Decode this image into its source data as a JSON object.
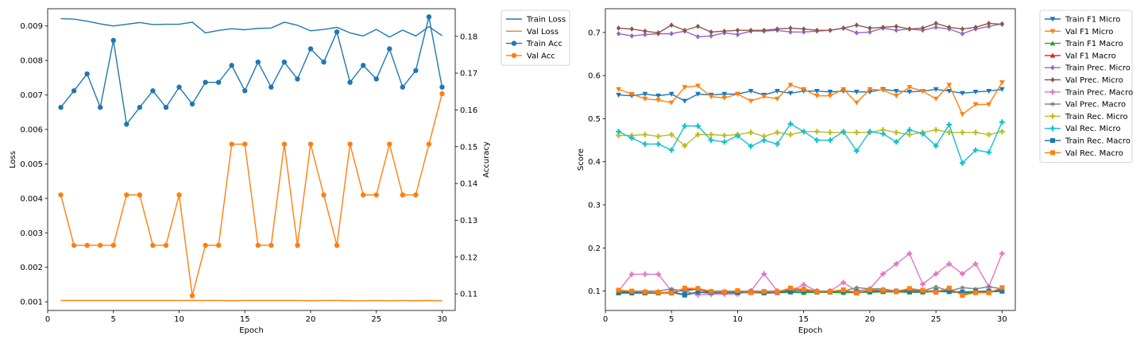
{
  "chart_data": [
    {
      "type": "line",
      "xlabel": "Epoch",
      "ylabel_left": "Loss",
      "ylabel_right": "Accuracy",
      "xlim": [
        0,
        31
      ],
      "xticks": [
        0,
        5,
        10,
        15,
        20,
        25,
        30
      ],
      "ylim_left": [
        0.00075,
        0.0095
      ],
      "yticks_left": [
        0.001,
        0.002,
        0.003,
        0.004,
        0.005,
        0.006,
        0.007,
        0.008,
        0.009
      ],
      "ylim_right": [
        0.1055,
        0.1875
      ],
      "yticks_right": [
        0.11,
        0.12,
        0.13,
        0.14,
        0.15,
        0.16,
        0.17,
        0.18
      ],
      "x": [
        1,
        2,
        3,
        4,
        5,
        6,
        7,
        8,
        9,
        10,
        11,
        12,
        13,
        14,
        15,
        16,
        17,
        18,
        19,
        20,
        21,
        22,
        23,
        24,
        25,
        26,
        27,
        28,
        29,
        30
      ],
      "series": [
        {
          "name": "Train Loss",
          "axis": "left",
          "color": "#1f77b4",
          "marker": "none",
          "values": [
            0.00921,
            0.0092,
            0.00914,
            0.00906,
            0.009,
            0.00905,
            0.0091,
            0.00904,
            0.00905,
            0.00905,
            0.00911,
            0.0088,
            0.00887,
            0.00892,
            0.00889,
            0.00893,
            0.00894,
            0.00911,
            0.00902,
            0.00886,
            0.0089,
            0.00896,
            0.0088,
            0.00871,
            0.0089,
            0.00868,
            0.00888,
            0.00871,
            0.00898,
            0.00872
          ]
        },
        {
          "name": "Val Loss",
          "axis": "left",
          "color": "#ff7f0e",
          "marker": "none",
          "values": [
            0.00104,
            0.00104,
            0.00104,
            0.00104,
            0.00104,
            0.00104,
            0.00104,
            0.00104,
            0.00104,
            0.00104,
            0.00104,
            0.00104,
            0.00104,
            0.00103,
            0.00104,
            0.00104,
            0.00104,
            0.00104,
            0.00104,
            0.00103,
            0.00104,
            0.00104,
            0.00103,
            0.00103,
            0.00104,
            0.00103,
            0.00104,
            0.00103,
            0.00104,
            0.00103
          ]
        },
        {
          "name": "Train Acc",
          "axis": "right",
          "color": "#1f77b4",
          "marker": "circle",
          "values": [
            0.1607,
            0.1652,
            0.1698,
            0.1607,
            0.1789,
            0.1561,
            0.1607,
            0.1652,
            0.1607,
            0.1662,
            0.1616,
            0.1675,
            0.1675,
            0.1721,
            0.1652,
            0.173,
            0.1662,
            0.173,
            0.1684,
            0.1766,
            0.173,
            0.1812,
            0.1675,
            0.1721,
            0.1684,
            0.1766,
            0.1662,
            0.1707,
            0.1853,
            0.1662
          ]
        },
        {
          "name": "Val Acc",
          "axis": "right",
          "color": "#ff7f0e",
          "marker": "circle",
          "values": [
            0.1369,
            0.1232,
            0.1232,
            0.1232,
            0.1232,
            0.1369,
            0.1369,
            0.1232,
            0.1232,
            0.1369,
            0.1095,
            0.1232,
            0.1232,
            0.1507,
            0.1507,
            0.1232,
            0.1232,
            0.1507,
            0.1232,
            0.1507,
            0.1369,
            0.1232,
            0.1507,
            0.1369,
            0.1369,
            0.1507,
            0.1369,
            0.1369,
            0.1507,
            0.1644
          ]
        }
      ],
      "legend": "upper-right-outside"
    },
    {
      "type": "line",
      "xlabel": "Epoch",
      "ylabel": "Score",
      "xlim": [
        0,
        31
      ],
      "xticks": [
        0,
        5,
        10,
        15,
        20,
        25,
        30
      ],
      "ylim": [
        0.055,
        0.755
      ],
      "yticks": [
        0.1,
        0.2,
        0.3,
        0.4,
        0.5,
        0.6,
        0.7
      ],
      "x": [
        1,
        2,
        3,
        4,
        5,
        6,
        7,
        8,
        9,
        10,
        11,
        12,
        13,
        14,
        15,
        16,
        17,
        18,
        19,
        20,
        21,
        22,
        23,
        24,
        25,
        26,
        27,
        28,
        29,
        30
      ],
      "series": [
        {
          "name": "Train F1 Micro",
          "color": "#1f77b4",
          "marker": "tri-down",
          "values": [
            0.555,
            0.553,
            0.557,
            0.553,
            0.557,
            0.541,
            0.557,
            0.555,
            0.557,
            0.557,
            0.564,
            0.555,
            0.564,
            0.559,
            0.564,
            0.564,
            0.562,
            0.564,
            0.562,
            0.562,
            0.568,
            0.564,
            0.562,
            0.564,
            0.568,
            0.564,
            0.559,
            0.562,
            0.564,
            0.568
          ]
        },
        {
          "name": "Val F1 Micro",
          "color": "#ff7f0e",
          "marker": "tri-down",
          "values": [
            0.568,
            0.557,
            0.546,
            0.543,
            0.537,
            0.573,
            0.576,
            0.551,
            0.548,
            0.557,
            0.541,
            0.551,
            0.546,
            0.578,
            0.568,
            0.553,
            0.553,
            0.568,
            0.537,
            0.568,
            0.566,
            0.553,
            0.573,
            0.564,
            0.546,
            0.578,
            0.51,
            0.533,
            0.533,
            0.584
          ]
        },
        {
          "name": "Train F1 Macro",
          "color": "#2ca02c",
          "marker": "tri-up",
          "values": [
            0.095,
            0.095,
            0.095,
            0.095,
            0.097,
            0.09,
            0.097,
            0.095,
            0.096,
            0.095,
            0.097,
            0.095,
            0.096,
            0.097,
            0.096,
            0.097,
            0.097,
            0.096,
            0.097,
            0.097,
            0.098,
            0.098,
            0.097,
            0.097,
            0.099,
            0.098,
            0.096,
            0.097,
            0.098,
            0.099
          ]
        },
        {
          "name": "Val F1 Macro",
          "color": "#d62728",
          "marker": "tri-up",
          "values": [
            0.1,
            0.099,
            0.096,
            0.096,
            0.095,
            0.104,
            0.104,
            0.097,
            0.096,
            0.098,
            0.096,
            0.097,
            0.096,
            0.104,
            0.102,
            0.098,
            0.098,
            0.101,
            0.095,
            0.102,
            0.101,
            0.098,
            0.103,
            0.101,
            0.097,
            0.104,
            0.092,
            0.096,
            0.096,
            0.105
          ]
        },
        {
          "name": "Train Prec. Micro",
          "color": "#9467bd",
          "marker": "diamond",
          "values": [
            0.697,
            0.692,
            0.695,
            0.697,
            0.697,
            0.703,
            0.69,
            0.692,
            0.699,
            0.695,
            0.703,
            0.703,
            0.705,
            0.701,
            0.701,
            0.703,
            0.705,
            0.71,
            0.699,
            0.701,
            0.71,
            0.705,
            0.708,
            0.705,
            0.712,
            0.708,
            0.697,
            0.708,
            0.714,
            0.72
          ]
        },
        {
          "name": "Val Prec. Micro",
          "color": "#8c564b",
          "marker": "diamond",
          "values": [
            0.71,
            0.708,
            0.703,
            0.699,
            0.717,
            0.705,
            0.714,
            0.701,
            0.703,
            0.705,
            0.705,
            0.705,
            0.708,
            0.71,
            0.708,
            0.705,
            0.705,
            0.71,
            0.717,
            0.71,
            0.712,
            0.714,
            0.708,
            0.71,
            0.721,
            0.712,
            0.708,
            0.712,
            0.721,
            0.719
          ]
        },
        {
          "name": "Train Prec. Macro",
          "color": "#e377c2",
          "marker": "plus",
          "values": [
            0.1,
            0.139,
            0.139,
            0.139,
            0.1,
            0.1,
            0.091,
            0.093,
            0.093,
            0.093,
            0.1,
            0.14,
            0.1,
            0.1,
            0.115,
            0.1,
            0.1,
            0.12,
            0.1,
            0.105,
            0.14,
            0.163,
            0.187,
            0.116,
            0.14,
            0.163,
            0.14,
            0.163,
            0.11,
            0.187
          ]
        },
        {
          "name": "Val Prec. Macro",
          "color": "#7f7f7f",
          "marker": "star",
          "values": [
            0.1,
            0.1,
            0.1,
            0.1,
            0.105,
            0.099,
            0.105,
            0.1,
            0.1,
            0.1,
            0.1,
            0.1,
            0.1,
            0.1,
            0.105,
            0.1,
            0.1,
            0.1,
            0.108,
            0.105,
            0.105,
            0.1,
            0.105,
            0.1,
            0.11,
            0.1,
            0.108,
            0.105,
            0.11,
            0.105
          ]
        },
        {
          "name": "Train Rec. Micro",
          "color": "#bcbd22",
          "marker": "plus",
          "values": [
            0.461,
            0.461,
            0.463,
            0.459,
            0.463,
            0.437,
            0.463,
            0.463,
            0.461,
            0.463,
            0.468,
            0.459,
            0.468,
            0.463,
            0.47,
            0.47,
            0.468,
            0.468,
            0.468,
            0.468,
            0.474,
            0.468,
            0.463,
            0.468,
            0.474,
            0.468,
            0.468,
            0.468,
            0.463,
            0.47
          ]
        },
        {
          "name": "Val Rec. Micro",
          "color": "#17becf",
          "marker": "plus",
          "values": [
            0.47,
            0.455,
            0.441,
            0.441,
            0.427,
            0.483,
            0.483,
            0.45,
            0.446,
            0.46,
            0.436,
            0.45,
            0.441,
            0.488,
            0.47,
            0.45,
            0.45,
            0.47,
            0.425,
            0.47,
            0.465,
            0.446,
            0.474,
            0.465,
            0.437,
            0.486,
            0.397,
            0.427,
            0.422,
            0.492
          ]
        },
        {
          "name": "Train Rec. Macro",
          "color": "#1f77b4",
          "marker": "square",
          "values": [
            0.097,
            0.097,
            0.097,
            0.096,
            0.098,
            0.092,
            0.098,
            0.097,
            0.097,
            0.097,
            0.098,
            0.097,
            0.098,
            0.099,
            0.099,
            0.099,
            0.099,
            0.099,
            0.099,
            0.099,
            0.1,
            0.1,
            0.099,
            0.1,
            0.101,
            0.1,
            0.098,
            0.099,
            0.1,
            0.101
          ]
        },
        {
          "name": "Val Rec. Macro",
          "color": "#ff7f0e",
          "marker": "square",
          "values": [
            0.102,
            0.1,
            0.098,
            0.097,
            0.096,
            0.107,
            0.106,
            0.099,
            0.098,
            0.101,
            0.097,
            0.099,
            0.098,
            0.107,
            0.104,
            0.099,
            0.099,
            0.103,
            0.096,
            0.103,
            0.102,
            0.099,
            0.106,
            0.102,
            0.098,
            0.107,
            0.09,
            0.096,
            0.096,
            0.108
          ]
        }
      ],
      "legend": "upper-right-outside"
    }
  ]
}
